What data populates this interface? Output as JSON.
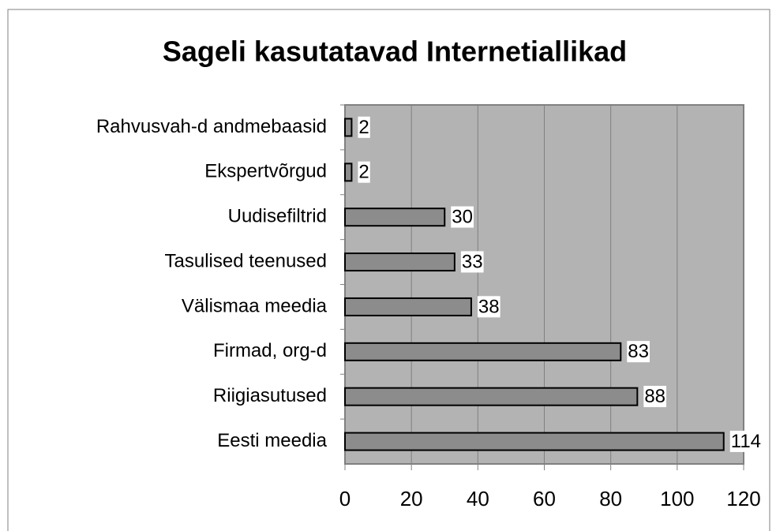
{
  "chart_data": {
    "type": "barh",
    "title": "Sageli kasutatavad Internetiallikad",
    "categories": [
      "Rahvusvah-d andmebaasid",
      "Ekspertvõrgud",
      "Uudisefiltrid",
      "Tasulised teenused",
      "Välismaa meedia",
      "Firmad, org-d",
      "Riigiasutused",
      "Eesti meedia"
    ],
    "values": [
      2,
      2,
      30,
      33,
      38,
      83,
      88,
      114
    ],
    "color": "#8c8c8c",
    "plot_background": "#b3b3b3",
    "xlim": [
      0,
      120
    ],
    "xticks": [
      0,
      20,
      40,
      60,
      80,
      100,
      120
    ],
    "grid": true
  }
}
